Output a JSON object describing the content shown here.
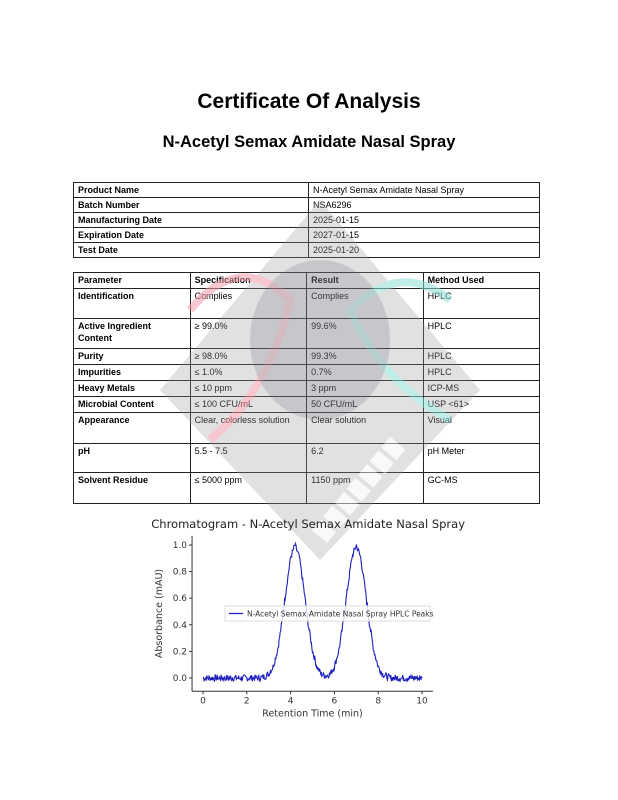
{
  "title": "Certificate Of Analysis",
  "subtitle": "N-Acetyl Semax Amidate Nasal Spray",
  "product_info": [
    {
      "label": "Product Name",
      "value": "N-Acetyl Semax Amidate Nasal Spray"
    },
    {
      "label": "Batch Number",
      "value": "NSA6296"
    },
    {
      "label": "Manufacturing Date",
      "value": "2025-01-15"
    },
    {
      "label": "Expiration Date",
      "value": "2027-01-15"
    },
    {
      "label": "Test Date",
      "value": "2025-01-20"
    }
  ],
  "results_table": {
    "headers": [
      "Parameter",
      "Specification",
      "Result",
      "Method Used"
    ],
    "rows": [
      [
        "Identification",
        "Complies",
        "Complies",
        "HPLC"
      ],
      [
        "Active Ingredient Content",
        "≥ 99.0%",
        "99.6%",
        "HPLC"
      ],
      [
        "Purity",
        "≥ 98.0%",
        "99.3%",
        "HPLC"
      ],
      [
        "Impurities",
        "≤ 1.0%",
        "0.7%",
        "HPLC"
      ],
      [
        "Heavy Metals",
        "≤ 10 ppm",
        "3 ppm",
        "ICP-MS"
      ],
      [
        "Microbial Content",
        "≤ 100 CFU/mL",
        "50 CFU/mL",
        "USP <61>"
      ],
      [
        "Appearance",
        "Clear, colorless solution",
        "Clear solution",
        "Visual"
      ],
      [
        "pH",
        "5.5 - 7.5",
        "6.2",
        "pH Meter"
      ],
      [
        "Solvent Residue",
        "≤ 5000 ppm",
        "1150 ppm",
        "GC-MS"
      ]
    ]
  },
  "watermark": {
    "text": "BEHEMOTH LABZ",
    "colors": [
      "#8e8e93",
      "#f29aa8",
      "#8fe0d8"
    ]
  },
  "chart_data": {
    "type": "line",
    "title": "HPLC Chromatogram - N-Acetyl Semax Amidate Nasal Spray",
    "xlabel": "Retention Time (min)",
    "ylabel": "Absorbance (mAU)",
    "xlim": [
      -0.5,
      10.5
    ],
    "ylim": [
      -0.1,
      1.07
    ],
    "xticks": [
      0,
      2,
      4,
      6,
      8,
      10
    ],
    "yticks": [
      0.0,
      0.2,
      0.4,
      0.6,
      0.8,
      1.0
    ],
    "ytick_labels": [
      "0.0",
      "0.2",
      "0.4",
      "0.6",
      "0.8",
      "1.0"
    ],
    "grid": false,
    "legend_placement": "center",
    "series": [
      {
        "name": "N-Acetyl Semax Amidate Nasal Spray HPLC Peaks",
        "color": "#1f1fbf",
        "x": [
          0,
          0.2,
          0.4,
          0.6,
          0.8,
          1.0,
          1.2,
          1.4,
          1.6,
          1.8,
          2.0,
          2.2,
          2.4,
          2.6,
          2.8,
          3.0,
          3.2,
          3.4,
          3.6,
          3.8,
          4.0,
          4.2,
          4.4,
          4.6,
          4.8,
          5.0,
          5.2,
          5.4,
          5.6,
          5.8,
          6.0,
          6.2,
          6.4,
          6.6,
          6.8,
          7.0,
          7.2,
          7.4,
          7.6,
          7.8,
          8.0,
          8.2,
          8.4,
          8.6,
          8.8,
          9.0,
          9.2,
          9.4,
          9.6,
          9.8,
          10.0
        ],
        "y": [
          0,
          0,
          0,
          0,
          0,
          0,
          0,
          0,
          0,
          0,
          0,
          0,
          0,
          0,
          0.01,
          0.03,
          0.085,
          0.206,
          0.411,
          0.674,
          0.906,
          1.0,
          0.906,
          0.674,
          0.411,
          0.206,
          0.085,
          0.03,
          0.016,
          0.03,
          0.085,
          0.206,
          0.411,
          0.674,
          0.906,
          1.0,
          0.906,
          0.674,
          0.411,
          0.206,
          0.085,
          0.03,
          0.01,
          0,
          0,
          0,
          0,
          0,
          0,
          0,
          0
        ]
      }
    ]
  }
}
